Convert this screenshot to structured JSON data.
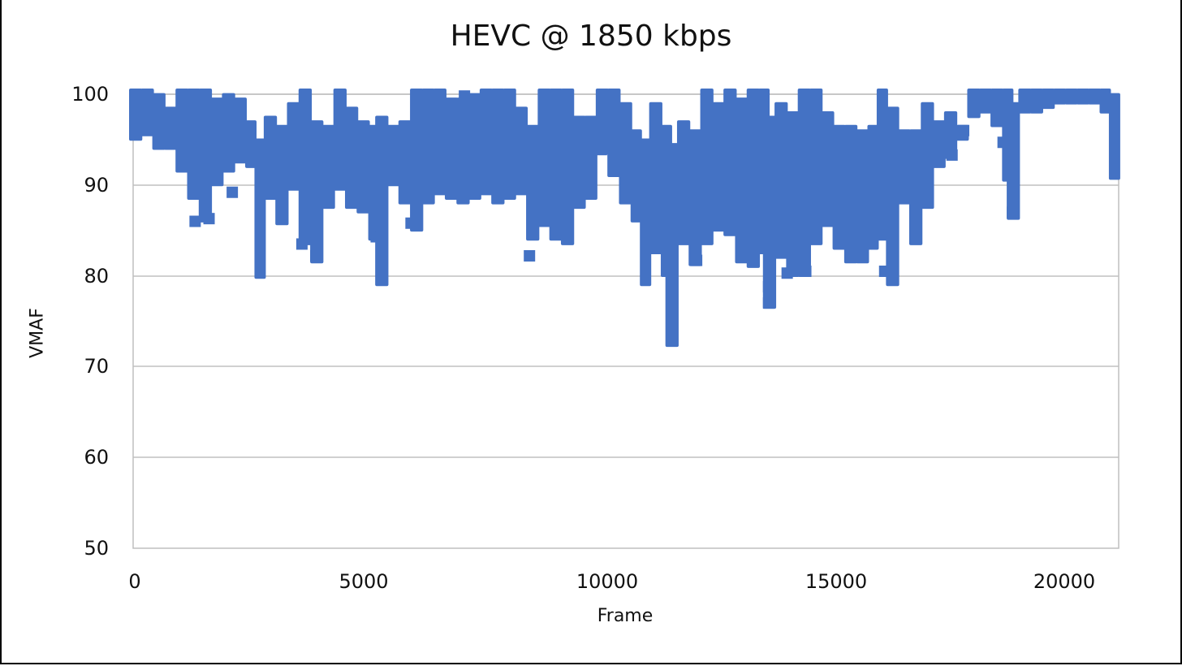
{
  "chart_data": {
    "type": "scatter",
    "title": "HEVC @ 1850 kbps",
    "xlabel": "Frame",
    "ylabel": "VMAF",
    "xlim": [
      0,
      21200
    ],
    "ylim": [
      50,
      100
    ],
    "x_ticks": [
      0,
      5000,
      10000,
      15000,
      20000
    ],
    "y_ticks": [
      50,
      60,
      70,
      80,
      90,
      100
    ],
    "grid": {
      "horizontal": true,
      "vertical": false
    },
    "legend": "none",
    "marker": {
      "shape": "square",
      "color": "#4472C4"
    },
    "series": [
      {
        "name": "VMAF",
        "representation": "envelope per frame bin (x = bin center frame, min/max VMAF)",
        "bins": [
          {
            "x": 0,
            "min": 95.5,
            "max": 100
          },
          {
            "x": 250,
            "min": 96.0,
            "max": 100
          },
          {
            "x": 500,
            "min": 94.5,
            "max": 99.5
          },
          {
            "x": 750,
            "min": 94.5,
            "max": 98.0
          },
          {
            "x": 1000,
            "min": 92.0,
            "max": 100
          },
          {
            "x": 1250,
            "min": 89.0,
            "max": 100
          },
          {
            "x": 1500,
            "min": 86.5,
            "max": 100
          },
          {
            "x": 1750,
            "min": 90.5,
            "max": 99.0
          },
          {
            "x": 2000,
            "min": 92.0,
            "max": 99.5
          },
          {
            "x": 2250,
            "min": 93.0,
            "max": 99.0
          },
          {
            "x": 2500,
            "min": 92.5,
            "max": 96.5
          },
          {
            "x": 2700,
            "min": 80.3,
            "max": 94.5
          },
          {
            "x": 2900,
            "min": 89.0,
            "max": 97.0
          },
          {
            "x": 3150,
            "min": 86.2,
            "max": 96.0
          },
          {
            "x": 3400,
            "min": 90.0,
            "max": 98.5
          },
          {
            "x": 3650,
            "min": 84.0,
            "max": 100
          },
          {
            "x": 3900,
            "min": 82.0,
            "max": 96.5
          },
          {
            "x": 4150,
            "min": 88.0,
            "max": 96.0
          },
          {
            "x": 4400,
            "min": 90.0,
            "max": 100
          },
          {
            "x": 4650,
            "min": 88.0,
            "max": 98.0
          },
          {
            "x": 4900,
            "min": 87.5,
            "max": 96.5
          },
          {
            "x": 5150,
            "min": 84.5,
            "max": 96.0
          },
          {
            "x": 5300,
            "min": 79.5,
            "max": 97.0
          },
          {
            "x": 5550,
            "min": 90.5,
            "max": 96.0
          },
          {
            "x": 5800,
            "min": 88.5,
            "max": 96.5
          },
          {
            "x": 6050,
            "min": 85.5,
            "max": 100
          },
          {
            "x": 6300,
            "min": 88.5,
            "max": 100
          },
          {
            "x": 6550,
            "min": 89.5,
            "max": 100
          },
          {
            "x": 6800,
            "min": 89.0,
            "max": 99.0
          },
          {
            "x": 7050,
            "min": 88.5,
            "max": 99.0
          },
          {
            "x": 7300,
            "min": 89.0,
            "max": 99.5
          },
          {
            "x": 7550,
            "min": 89.5,
            "max": 100
          },
          {
            "x": 7800,
            "min": 88.5,
            "max": 100
          },
          {
            "x": 8050,
            "min": 89.0,
            "max": 100
          },
          {
            "x": 8300,
            "min": 89.5,
            "max": 98.0
          },
          {
            "x": 8550,
            "min": 84.5,
            "max": 96.0
          },
          {
            "x": 8800,
            "min": 86.0,
            "max": 100
          },
          {
            "x": 9050,
            "min": 84.5,
            "max": 100
          },
          {
            "x": 9300,
            "min": 84.0,
            "max": 100
          },
          {
            "x": 9550,
            "min": 88.0,
            "max": 97.0
          },
          {
            "x": 9800,
            "min": 89.0,
            "max": 97.0
          },
          {
            "x": 10050,
            "min": 94.0,
            "max": 100
          },
          {
            "x": 10300,
            "min": 91.5,
            "max": 100
          },
          {
            "x": 10550,
            "min": 88.5,
            "max": 98.5
          },
          {
            "x": 10800,
            "min": 86.5,
            "max": 95.5
          },
          {
            "x": 11000,
            "min": 79.5,
            "max": 94.5
          },
          {
            "x": 11200,
            "min": 83.0,
            "max": 98.5
          },
          {
            "x": 11450,
            "min": 80.5,
            "max": 96.0
          },
          {
            "x": 11550,
            "min": 72.8,
            "max": 94.0
          },
          {
            "x": 11800,
            "min": 84.0,
            "max": 96.5
          },
          {
            "x": 12050,
            "min": 81.7,
            "max": 95.5
          },
          {
            "x": 12300,
            "min": 84.0,
            "max": 100
          },
          {
            "x": 12550,
            "min": 85.5,
            "max": 98.5
          },
          {
            "x": 12800,
            "min": 85.0,
            "max": 100
          },
          {
            "x": 13050,
            "min": 82.0,
            "max": 99.0
          },
          {
            "x": 13300,
            "min": 81.5,
            "max": 100
          },
          {
            "x": 13550,
            "min": 83.0,
            "max": 100
          },
          {
            "x": 13650,
            "min": 77.0,
            "max": 97.0
          },
          {
            "x": 13900,
            "min": 82.5,
            "max": 98.5
          },
          {
            "x": 14150,
            "min": 80.5,
            "max": 97.5
          },
          {
            "x": 14400,
            "min": 80.5,
            "max": 100
          },
          {
            "x": 14650,
            "min": 84.0,
            "max": 100
          },
          {
            "x": 14900,
            "min": 86.0,
            "max": 97.5
          },
          {
            "x": 15150,
            "min": 83.5,
            "max": 96.0
          },
          {
            "x": 15400,
            "min": 82.0,
            "max": 96.0
          },
          {
            "x": 15650,
            "min": 82.0,
            "max": 95.5
          },
          {
            "x": 15900,
            "min": 83.5,
            "max": 96.0
          },
          {
            "x": 16100,
            "min": 84.5,
            "max": 100
          },
          {
            "x": 16300,
            "min": 79.5,
            "max": 98.0
          },
          {
            "x": 16550,
            "min": 88.5,
            "max": 95.5
          },
          {
            "x": 16800,
            "min": 84.0,
            "max": 95.5
          },
          {
            "x": 17050,
            "min": 88.0,
            "max": 98.5
          },
          {
            "x": 17300,
            "min": 92.5,
            "max": 96.5
          },
          {
            "x": 17550,
            "min": 93.5,
            "max": 97.5
          },
          {
            "x": 17800,
            "min": 95.5,
            "max": 96.0
          },
          {
            "x": 18050,
            "min": 98.0,
            "max": 100
          },
          {
            "x": 18300,
            "min": 98.5,
            "max": 100
          },
          {
            "x": 18550,
            "min": 97.0,
            "max": 100
          },
          {
            "x": 18800,
            "min": 91.0,
            "max": 100
          },
          {
            "x": 18900,
            "min": 86.8,
            "max": 98.5
          },
          {
            "x": 19150,
            "min": 98.5,
            "max": 100
          },
          {
            "x": 19400,
            "min": 98.5,
            "max": 100
          },
          {
            "x": 19650,
            "min": 99.0,
            "max": 100
          },
          {
            "x": 19900,
            "min": 99.5,
            "max": 100
          },
          {
            "x": 20150,
            "min": 99.5,
            "max": 100
          },
          {
            "x": 20400,
            "min": 99.5,
            "max": 100
          },
          {
            "x": 20650,
            "min": 99.5,
            "max": 100
          },
          {
            "x": 20900,
            "min": 98.5,
            "max": 100
          },
          {
            "x": 21100,
            "min": 91.2,
            "max": 99.5
          }
        ],
        "outliers": [
          {
            "x": 1300,
            "y": 86.0
          },
          {
            "x": 1600,
            "y": 86.3
          },
          {
            "x": 2100,
            "y": 89.2
          },
          {
            "x": 3600,
            "y": 83.5
          },
          {
            "x": 3900,
            "y": 82.2
          },
          {
            "x": 3900,
            "y": 84.8
          },
          {
            "x": 5200,
            "y": 84.3
          },
          {
            "x": 5950,
            "y": 85.8
          },
          {
            "x": 8500,
            "y": 82.2
          },
          {
            "x": 7100,
            "y": 99.8
          },
          {
            "x": 10050,
            "y": 93.9
          },
          {
            "x": 12100,
            "y": 81.7
          },
          {
            "x": 13650,
            "y": 78.8
          },
          {
            "x": 13650,
            "y": 77.0
          },
          {
            "x": 14050,
            "y": 80.3
          },
          {
            "x": 14450,
            "y": 80.5
          },
          {
            "x": 16150,
            "y": 80.5
          },
          {
            "x": 17600,
            "y": 93.3
          },
          {
            "x": 17850,
            "y": 96.0
          },
          {
            "x": 18700,
            "y": 94.7
          },
          {
            "x": 18900,
            "y": 87.0
          }
        ]
      }
    ]
  },
  "axes": {
    "y_tick_labels": [
      "100",
      "90",
      "80",
      "70",
      "60",
      "50"
    ],
    "x_tick_labels": [
      "0",
      "5000",
      "10000",
      "15000",
      "20000"
    ]
  },
  "colors": {
    "marker": "#4472C4",
    "gridline": "#c0c0c0",
    "plot_border": "#bfbfbf",
    "text": "#111111"
  }
}
